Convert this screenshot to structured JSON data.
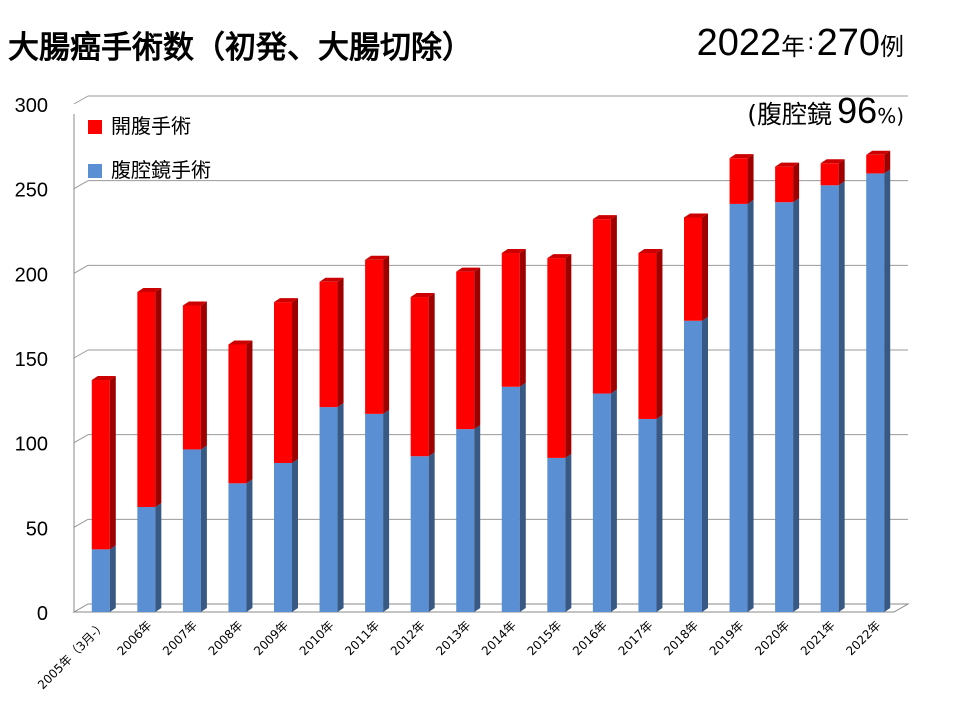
{
  "header": {
    "title": "大腸癌手術数（初発、大腸切除）",
    "total_year": "2022年",
    "total_colon": ":",
    "total_value": "270",
    "total_unit": "例",
    "ratio_open": "(",
    "ratio_label": "腹腔鏡",
    "ratio_value": "96",
    "ratio_unit": "%)"
  },
  "chart_data": {
    "type": "bar",
    "stacked": true,
    "categories": [
      "2005年（3月-）",
      "2006年",
      "2007年",
      "2008年",
      "2009年",
      "2010年",
      "2011年",
      "2012年",
      "2013年",
      "2014年",
      "2015年",
      "2016年",
      "2017年",
      "2018年",
      "2019年",
      "2020年",
      "2021年",
      "2022年"
    ],
    "series": [
      {
        "name": "腹腔鏡手術",
        "color": "#5b8fd4",
        "values": [
          37,
          62,
          96,
          76,
          88,
          121,
          117,
          92,
          108,
          133,
          91,
          129,
          114,
          172,
          241,
          242,
          252,
          259
        ]
      },
      {
        "name": "開腹手術",
        "color": "#ff0000",
        "values": [
          100,
          127,
          85,
          82,
          95,
          74,
          91,
          94,
          93,
          79,
          118,
          103,
          98,
          61,
          27,
          21,
          13,
          11
        ]
      }
    ],
    "yticks": [
      0,
      50,
      100,
      150,
      200,
      250,
      300
    ],
    "ylim": [
      0,
      300
    ],
    "grid": true,
    "legend_position": "top-left"
  }
}
